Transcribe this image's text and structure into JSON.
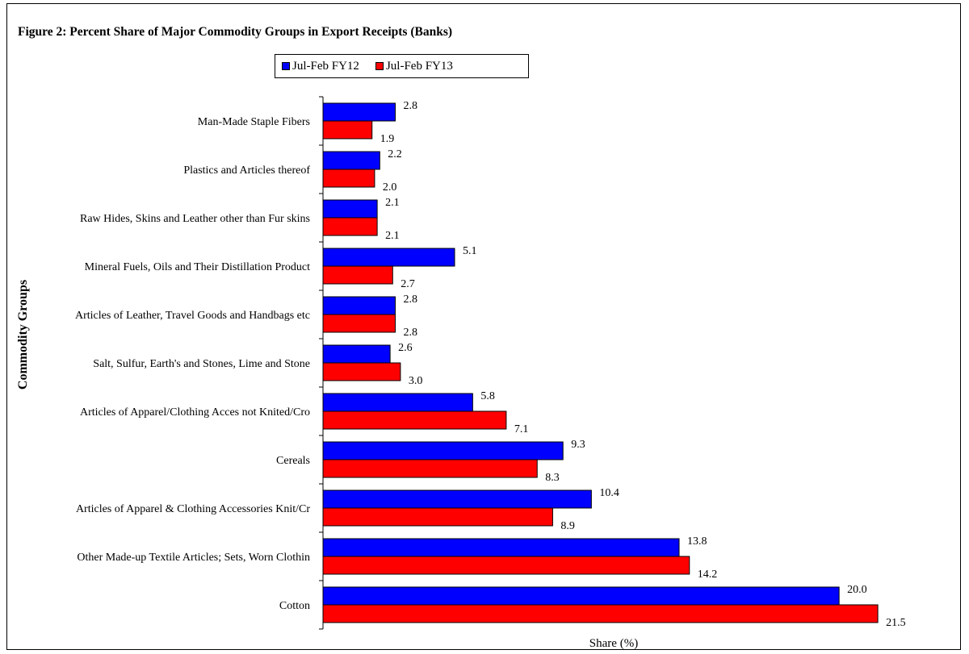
{
  "chart_data": {
    "type": "bar",
    "orientation": "horizontal",
    "title": "Figure 2: Percent Share of Major Commodity Groups in Export Receipts (Banks)",
    "xlabel": "Share (%)",
    "ylabel": "Commodity Groups",
    "categories": [
      "Man-Made Staple Fibers",
      "Plastics and Articles thereof",
      "Raw Hides, Skins and Leather other than Fur skins",
      "Mineral Fuels, Oils and Their Distillation Product",
      "Articles of Leather, Travel Goods and Handbags etc",
      "Salt, Sulfur, Earth's and Stones, Lime and Stone",
      "Articles of Apparel/Clothing Acces not Knited/Cro",
      "Cereals",
      "Articles of Apparel & Clothing Accessories Knit/Cr",
      "Other Made-up Textile Articles; Sets, Worn Clothin",
      "Cotton"
    ],
    "series": [
      {
        "name": "Jul-Feb FY12",
        "color": "#0000ff",
        "values": [
          2.8,
          2.2,
          2.1,
          5.1,
          2.8,
          2.6,
          5.8,
          9.3,
          10.4,
          13.8,
          20.0
        ]
      },
      {
        "name": "Jul-Feb FY13",
        "color": "#ff0000",
        "values": [
          1.9,
          2.0,
          2.1,
          2.7,
          2.8,
          3.0,
          7.1,
          8.3,
          8.9,
          14.2,
          21.5
        ]
      }
    ],
    "xlim": [
      0,
      23
    ],
    "legend_position": "top-center",
    "grid": false,
    "value_labels": true
  }
}
